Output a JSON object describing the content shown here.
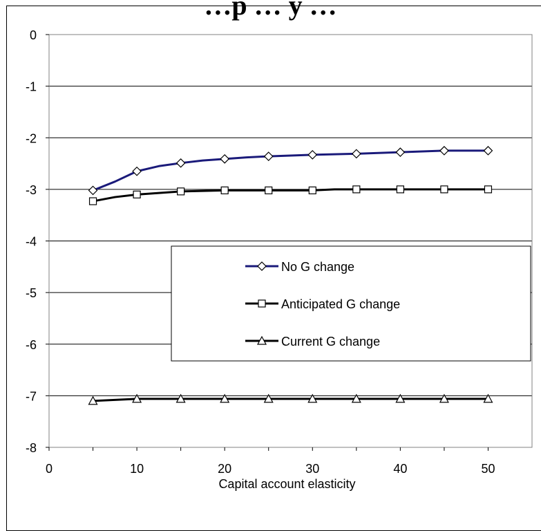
{
  "chart_data": {
    "type": "line",
    "title": "…p … y …",
    "xlabel": "Capital account elasticity",
    "ylabel": "",
    "xlim": [
      0,
      55
    ],
    "ylim": [
      -8,
      0
    ],
    "xticks": [
      0,
      10,
      20,
      30,
      40,
      50
    ],
    "yticks": [
      0,
      -1,
      -2,
      -3,
      -4,
      -5,
      -6,
      -7,
      -8
    ],
    "grid": "horizontal",
    "legend_position": "center-right",
    "series": [
      {
        "name": "No G change",
        "color": "#1a1a7a",
        "marker": "diamond",
        "x": [
          5,
          7.5,
          10,
          12.5,
          15,
          17.5,
          20,
          22.5,
          25,
          30,
          35,
          40,
          45,
          50
        ],
        "y": [
          -3.02,
          -2.85,
          -2.65,
          -2.55,
          -2.49,
          -2.44,
          -2.41,
          -2.38,
          -2.36,
          -2.33,
          -2.31,
          -2.28,
          -2.25,
          -2.25
        ],
        "marker_x": [
          5,
          10,
          15,
          20,
          25,
          30,
          35,
          40,
          45,
          50
        ]
      },
      {
        "name": "Anticipated G change",
        "color": "#000000",
        "marker": "square",
        "x": [
          5,
          7.5,
          10,
          12.5,
          15,
          17.5,
          20,
          25,
          30,
          32.5,
          35,
          40,
          45,
          50
        ],
        "y": [
          -3.23,
          -3.15,
          -3.1,
          -3.07,
          -3.04,
          -3.03,
          -3.02,
          -3.02,
          -3.02,
          -3.0,
          -3.0,
          -3.0,
          -3.0,
          -3.0
        ],
        "marker_x": [
          5,
          10,
          15,
          20,
          25,
          30,
          35,
          40,
          45,
          50
        ]
      },
      {
        "name": "Current G change",
        "color": "#000000",
        "marker": "triangle",
        "x": [
          5,
          10,
          15,
          20,
          25,
          30,
          35,
          40,
          45,
          50
        ],
        "y": [
          -7.1,
          -7.06,
          -7.06,
          -7.06,
          -7.06,
          -7.06,
          -7.06,
          -7.06,
          -7.06,
          -7.06
        ],
        "marker_x": [
          5,
          10,
          15,
          20,
          25,
          30,
          35,
          40,
          45,
          50
        ]
      }
    ]
  }
}
